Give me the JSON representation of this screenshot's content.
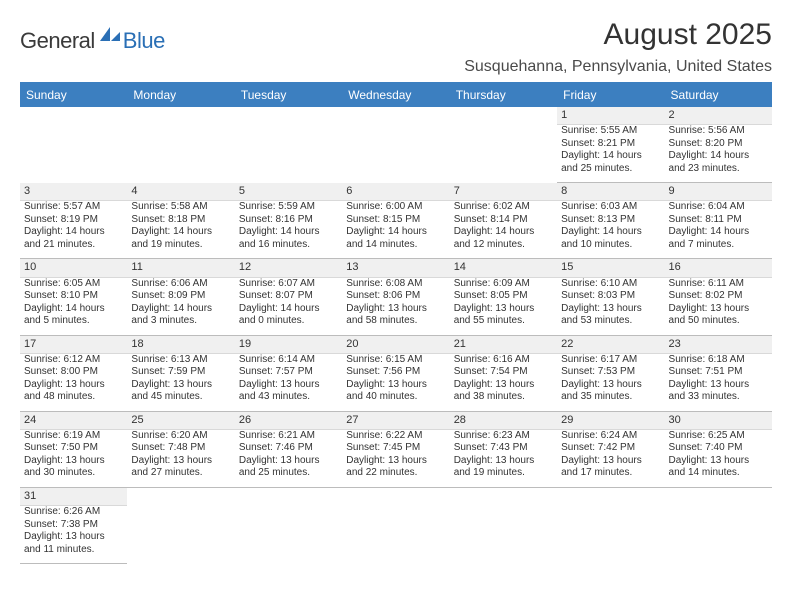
{
  "logo": {
    "text1": "General",
    "text2": "Blue"
  },
  "header": {
    "title": "August 2025",
    "location": "Susquehanna, Pennsylvania, United States"
  },
  "colors": {
    "header_bg": "#3c7fc0",
    "header_text": "#ffffff",
    "daynum_bg": "#f0f0f0",
    "rule": "#3c7fc0",
    "logo_blue": "#2a6fb5",
    "title_text": "#333333"
  },
  "typography": {
    "title_fontsize": 30,
    "location_fontsize": 16,
    "weekday_fontsize": 12,
    "daynum_fontsize": 11,
    "body_fontsize": 10
  },
  "weekdays": [
    "Sunday",
    "Monday",
    "Tuesday",
    "Wednesday",
    "Thursday",
    "Friday",
    "Saturday"
  ],
  "weeks": [
    [
      null,
      null,
      null,
      null,
      null,
      {
        "n": "1",
        "sr": "Sunrise: 5:55 AM",
        "ss": "Sunset: 8:21 PM",
        "d1": "Daylight: 14 hours",
        "d2": "and 25 minutes."
      },
      {
        "n": "2",
        "sr": "Sunrise: 5:56 AM",
        "ss": "Sunset: 8:20 PM",
        "d1": "Daylight: 14 hours",
        "d2": "and 23 minutes."
      }
    ],
    [
      {
        "n": "3",
        "sr": "Sunrise: 5:57 AM",
        "ss": "Sunset: 8:19 PM",
        "d1": "Daylight: 14 hours",
        "d2": "and 21 minutes."
      },
      {
        "n": "4",
        "sr": "Sunrise: 5:58 AM",
        "ss": "Sunset: 8:18 PM",
        "d1": "Daylight: 14 hours",
        "d2": "and 19 minutes."
      },
      {
        "n": "5",
        "sr": "Sunrise: 5:59 AM",
        "ss": "Sunset: 8:16 PM",
        "d1": "Daylight: 14 hours",
        "d2": "and 16 minutes."
      },
      {
        "n": "6",
        "sr": "Sunrise: 6:00 AM",
        "ss": "Sunset: 8:15 PM",
        "d1": "Daylight: 14 hours",
        "d2": "and 14 minutes."
      },
      {
        "n": "7",
        "sr": "Sunrise: 6:02 AM",
        "ss": "Sunset: 8:14 PM",
        "d1": "Daylight: 14 hours",
        "d2": "and 12 minutes."
      },
      {
        "n": "8",
        "sr": "Sunrise: 6:03 AM",
        "ss": "Sunset: 8:13 PM",
        "d1": "Daylight: 14 hours",
        "d2": "and 10 minutes."
      },
      {
        "n": "9",
        "sr": "Sunrise: 6:04 AM",
        "ss": "Sunset: 8:11 PM",
        "d1": "Daylight: 14 hours",
        "d2": "and 7 minutes."
      }
    ],
    [
      {
        "n": "10",
        "sr": "Sunrise: 6:05 AM",
        "ss": "Sunset: 8:10 PM",
        "d1": "Daylight: 14 hours",
        "d2": "and 5 minutes."
      },
      {
        "n": "11",
        "sr": "Sunrise: 6:06 AM",
        "ss": "Sunset: 8:09 PM",
        "d1": "Daylight: 14 hours",
        "d2": "and 3 minutes."
      },
      {
        "n": "12",
        "sr": "Sunrise: 6:07 AM",
        "ss": "Sunset: 8:07 PM",
        "d1": "Daylight: 14 hours",
        "d2": "and 0 minutes."
      },
      {
        "n": "13",
        "sr": "Sunrise: 6:08 AM",
        "ss": "Sunset: 8:06 PM",
        "d1": "Daylight: 13 hours",
        "d2": "and 58 minutes."
      },
      {
        "n": "14",
        "sr": "Sunrise: 6:09 AM",
        "ss": "Sunset: 8:05 PM",
        "d1": "Daylight: 13 hours",
        "d2": "and 55 minutes."
      },
      {
        "n": "15",
        "sr": "Sunrise: 6:10 AM",
        "ss": "Sunset: 8:03 PM",
        "d1": "Daylight: 13 hours",
        "d2": "and 53 minutes."
      },
      {
        "n": "16",
        "sr": "Sunrise: 6:11 AM",
        "ss": "Sunset: 8:02 PM",
        "d1": "Daylight: 13 hours",
        "d2": "and 50 minutes."
      }
    ],
    [
      {
        "n": "17",
        "sr": "Sunrise: 6:12 AM",
        "ss": "Sunset: 8:00 PM",
        "d1": "Daylight: 13 hours",
        "d2": "and 48 minutes."
      },
      {
        "n": "18",
        "sr": "Sunrise: 6:13 AM",
        "ss": "Sunset: 7:59 PM",
        "d1": "Daylight: 13 hours",
        "d2": "and 45 minutes."
      },
      {
        "n": "19",
        "sr": "Sunrise: 6:14 AM",
        "ss": "Sunset: 7:57 PM",
        "d1": "Daylight: 13 hours",
        "d2": "and 43 minutes."
      },
      {
        "n": "20",
        "sr": "Sunrise: 6:15 AM",
        "ss": "Sunset: 7:56 PM",
        "d1": "Daylight: 13 hours",
        "d2": "and 40 minutes."
      },
      {
        "n": "21",
        "sr": "Sunrise: 6:16 AM",
        "ss": "Sunset: 7:54 PM",
        "d1": "Daylight: 13 hours",
        "d2": "and 38 minutes."
      },
      {
        "n": "22",
        "sr": "Sunrise: 6:17 AM",
        "ss": "Sunset: 7:53 PM",
        "d1": "Daylight: 13 hours",
        "d2": "and 35 minutes."
      },
      {
        "n": "23",
        "sr": "Sunrise: 6:18 AM",
        "ss": "Sunset: 7:51 PM",
        "d1": "Daylight: 13 hours",
        "d2": "and 33 minutes."
      }
    ],
    [
      {
        "n": "24",
        "sr": "Sunrise: 6:19 AM",
        "ss": "Sunset: 7:50 PM",
        "d1": "Daylight: 13 hours",
        "d2": "and 30 minutes."
      },
      {
        "n": "25",
        "sr": "Sunrise: 6:20 AM",
        "ss": "Sunset: 7:48 PM",
        "d1": "Daylight: 13 hours",
        "d2": "and 27 minutes."
      },
      {
        "n": "26",
        "sr": "Sunrise: 6:21 AM",
        "ss": "Sunset: 7:46 PM",
        "d1": "Daylight: 13 hours",
        "d2": "and 25 minutes."
      },
      {
        "n": "27",
        "sr": "Sunrise: 6:22 AM",
        "ss": "Sunset: 7:45 PM",
        "d1": "Daylight: 13 hours",
        "d2": "and 22 minutes."
      },
      {
        "n": "28",
        "sr": "Sunrise: 6:23 AM",
        "ss": "Sunset: 7:43 PM",
        "d1": "Daylight: 13 hours",
        "d2": "and 19 minutes."
      },
      {
        "n": "29",
        "sr": "Sunrise: 6:24 AM",
        "ss": "Sunset: 7:42 PM",
        "d1": "Daylight: 13 hours",
        "d2": "and 17 minutes."
      },
      {
        "n": "30",
        "sr": "Sunrise: 6:25 AM",
        "ss": "Sunset: 7:40 PM",
        "d1": "Daylight: 13 hours",
        "d2": "and 14 minutes."
      }
    ],
    [
      {
        "n": "31",
        "sr": "Sunrise: 6:26 AM",
        "ss": "Sunset: 7:38 PM",
        "d1": "Daylight: 13 hours",
        "d2": "and 11 minutes."
      },
      null,
      null,
      null,
      null,
      null,
      null
    ]
  ]
}
